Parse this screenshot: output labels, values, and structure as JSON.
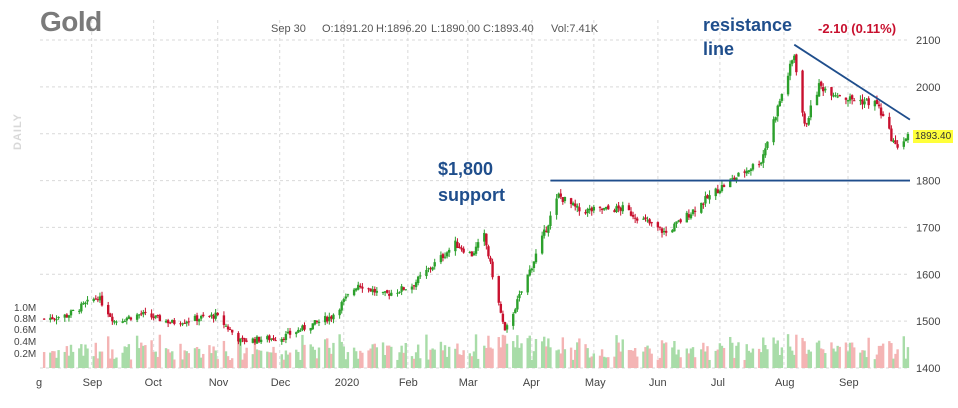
{
  "header": {
    "title": "Gold",
    "date": "Sep 30",
    "open": "O:1891.20",
    "high": "H:1896.20",
    "low": "L:1890.00",
    "close": "C:1893.40",
    "volume": "Vol:7.41K",
    "change": "-2.10 (0.11%)",
    "side_label": "DAILY",
    "last_price": "1893.40"
  },
  "annotations": {
    "resistance_line1": "resistance",
    "resistance_line2": "line",
    "support_line1": "$1,800",
    "support_line2": "support"
  },
  "colors": {
    "up": "#2ca02c",
    "down": "#c8102e",
    "vol_up": "#a8dca8",
    "vol_down": "#f4b4b4",
    "trendline": "#1f4e8c",
    "grid": "#d9d9d9"
  },
  "chart_data": {
    "type": "candlestick",
    "title": "Gold",
    "ylim": [
      1400,
      2100
    ],
    "y_ticks": [
      "2100",
      "2000",
      "1800",
      "1700",
      "1600",
      "1500",
      "1400"
    ],
    "x_ticks": [
      "g",
      "Sep",
      "Oct",
      "Nov",
      "Dec",
      "2020",
      "Feb",
      "Mar",
      "Apr",
      "May",
      "Jun",
      "Jul",
      "Aug",
      "Sep"
    ],
    "volume_ticks": [
      "1.0M",
      "0.8M",
      "0.6M",
      "0.4M",
      "0.2M"
    ],
    "price_path": [
      [
        "2019-08-09",
        1505
      ],
      [
        "2019-08-20",
        1512
      ],
      [
        "2019-09-04",
        1552
      ],
      [
        "2019-09-12",
        1500
      ],
      [
        "2019-09-25",
        1515
      ],
      [
        "2019-10-10",
        1497
      ],
      [
        "2019-10-31",
        1512
      ],
      [
        "2019-11-12",
        1458
      ],
      [
        "2019-12-02",
        1465
      ],
      [
        "2019-12-26",
        1510
      ],
      [
        "2020-01-08",
        1580
      ],
      [
        "2020-01-20",
        1555
      ],
      [
        "2020-02-03",
        1576
      ],
      [
        "2020-02-24",
        1665
      ],
      [
        "2020-03-03",
        1642
      ],
      [
        "2020-03-09",
        1682
      ],
      [
        "2020-03-19",
        1475
      ],
      [
        "2020-04-02",
        1630
      ],
      [
        "2020-04-14",
        1768
      ],
      [
        "2020-04-24",
        1735
      ],
      [
        "2020-05-15",
        1740
      ],
      [
        "2020-06-05",
        1688
      ],
      [
        "2020-06-30",
        1781
      ],
      [
        "2020-07-21",
        1843
      ],
      [
        "2020-08-06",
        2069
      ],
      [
        "2020-08-11",
        1915
      ],
      [
        "2020-08-18",
        2002
      ],
      [
        "2020-09-01",
        1975
      ],
      [
        "2020-09-15",
        1964
      ],
      [
        "2020-09-24",
        1872
      ],
      [
        "2020-09-30",
        1893.4
      ]
    ],
    "support_level": 1800,
    "resistance_line": [
      [
        "2020-08-06",
        2090
      ],
      [
        "2020-09-30",
        1930
      ]
    ]
  }
}
